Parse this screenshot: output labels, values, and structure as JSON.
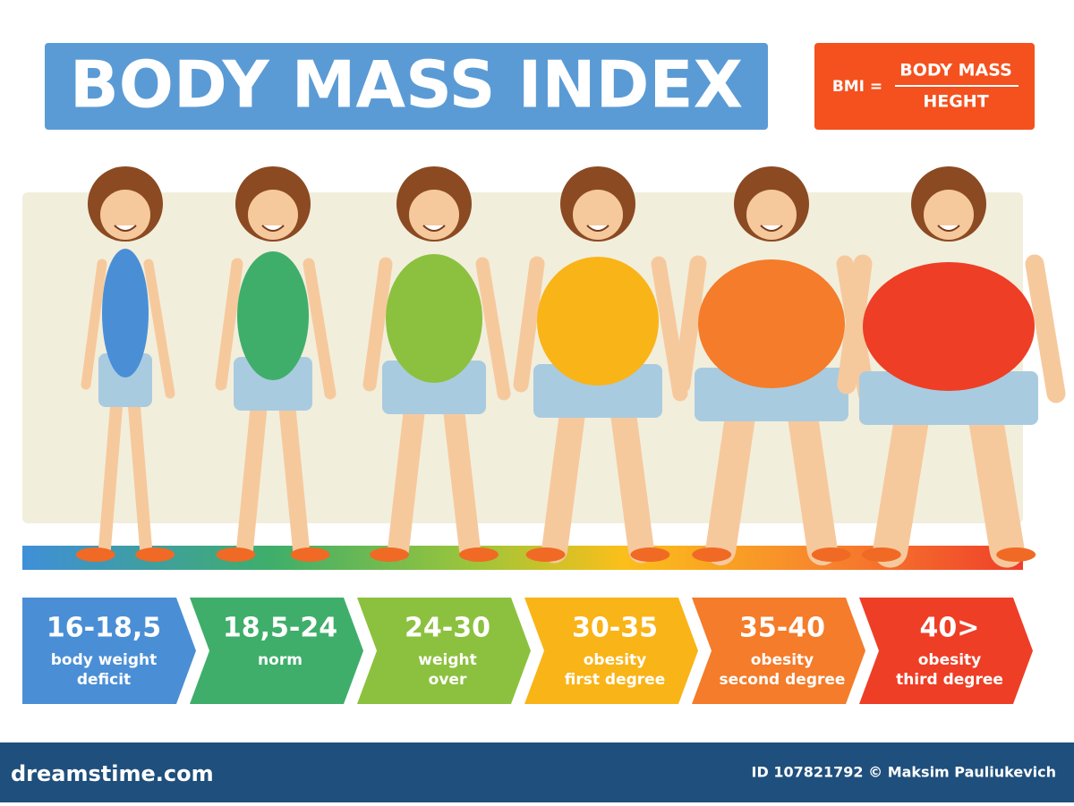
{
  "header": {
    "title": "BODY MASS INDEX"
  },
  "formula": {
    "lhs": "BMI =",
    "numerator": "BODY MASS",
    "denominator": "HEGHT"
  },
  "categories": [
    {
      "range": "16-18,5",
      "lines": [
        "body weight",
        "deficit"
      ],
      "color": "#4a8fd6"
    },
    {
      "range": "18,5-24",
      "lines": [
        "norm"
      ],
      "color": "#3fae6a"
    },
    {
      "range": "24-30",
      "lines": [
        "weight",
        "over"
      ],
      "color": "#8cc13f"
    },
    {
      "range": "30-35",
      "lines": [
        "obesity",
        "first degree"
      ],
      "color": "#f9b418"
    },
    {
      "range": "35-40",
      "lines": [
        "obesity",
        "second degree"
      ],
      "color": "#f47c2a"
    },
    {
      "range": "40>",
      "lines": [
        "obesity",
        "third degree"
      ],
      "color": "#ee3e26"
    }
  ],
  "footer": {
    "site": "dreamstime.com",
    "credit": "ID 107821792 © Maksim Pauliukevich"
  }
}
